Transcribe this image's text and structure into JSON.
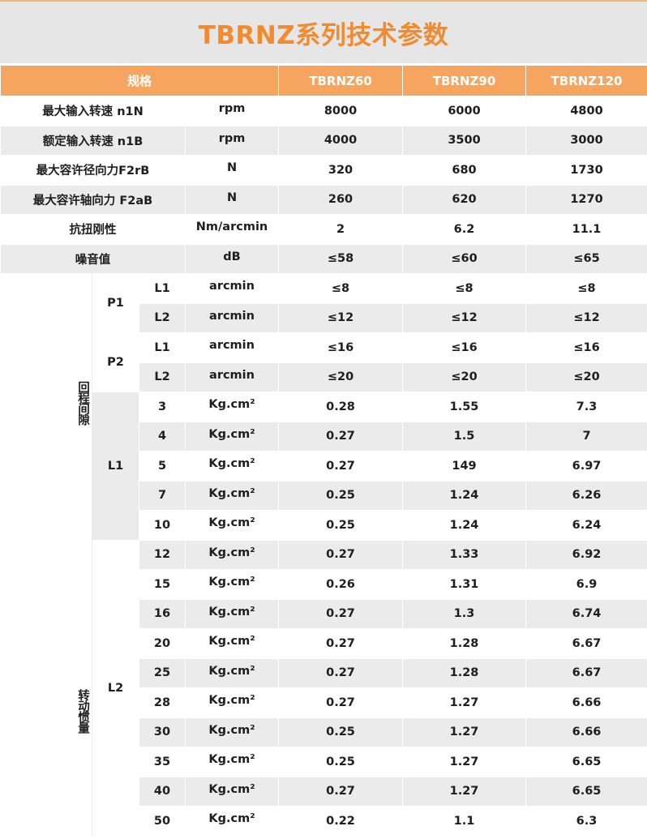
{
  "title": "TBRNZ系列技术参数",
  "header": {
    "spec_label": "规格",
    "models": [
      "TBRNZ60",
      "TBRNZ90",
      "TBRNZ120"
    ]
  },
  "colors": {
    "accent": "#f5a560",
    "title": "#f28a2e",
    "stripe": "#ebebeb",
    "band": "#e6e6e6"
  },
  "top_rows": [
    {
      "name": "最大输入转速 n1N",
      "unit": "rpm",
      "values": [
        "8000",
        "6000",
        "4800"
      ]
    },
    {
      "name": "额定输入转速 n1B",
      "unit": "rpm",
      "values": [
        "4000",
        "3500",
        "3000"
      ]
    },
    {
      "name": "最大容许径向力F2rB",
      "unit": "N",
      "values": [
        "320",
        "680",
        "1730"
      ]
    },
    {
      "name": "最大容许轴向力 F2aB",
      "unit": "N",
      "values": [
        "260",
        "620",
        "1270"
      ]
    },
    {
      "name": "抗扭刚性",
      "unit": "Nm/arcmin",
      "values": [
        "2",
        "6.2",
        "11.1"
      ]
    },
    {
      "name": "噪音值",
      "unit": "dB",
      "values": [
        "≤58",
        "≤60",
        "≤65"
      ]
    }
  ],
  "backlash": {
    "label": "回程间隙",
    "groups": [
      {
        "name": "P1",
        "rows": [
          {
            "sub": "L1",
            "unit": "arcmin",
            "values": [
              "≤8",
              "≤8",
              "≤8"
            ]
          },
          {
            "sub": "L2",
            "unit": "arcmin",
            "values": [
              "≤12",
              "≤12",
              "≤12"
            ]
          }
        ]
      },
      {
        "name": "P2",
        "rows": [
          {
            "sub": "L1",
            "unit": "arcmin",
            "values": [
              "≤16",
              "≤16",
              "≤16"
            ]
          },
          {
            "sub": "L2",
            "unit": "arcmin",
            "values": [
              "≤20",
              "≤20",
              "≤20"
            ]
          }
        ]
      }
    ]
  },
  "inertia": {
    "label": "转动惯量",
    "groups": [
      {
        "name": "L1",
        "rows": [
          {
            "sub": "3",
            "unit": "Kg.cm²",
            "values": [
              "0.28",
              "1.55",
              "7.3"
            ]
          },
          {
            "sub": "4",
            "unit": "Kg.cm²",
            "values": [
              "0.27",
              "1.5",
              "7"
            ]
          },
          {
            "sub": "5",
            "unit": "Kg.cm²",
            "values": [
              "0.27",
              "149",
              "6.97"
            ]
          },
          {
            "sub": "7",
            "unit": "Kg.cm²",
            "values": [
              "0.25",
              "1.24",
              "6.26"
            ]
          },
          {
            "sub": "10",
            "unit": "Kg.cm²",
            "values": [
              "0.25",
              "1.24",
              "6.24"
            ]
          }
        ]
      },
      {
        "name": "L2",
        "rows": [
          {
            "sub": "12",
            "unit": "Kg.cm²",
            "values": [
              "0.27",
              "1.33",
              "6.92"
            ]
          },
          {
            "sub": "15",
            "unit": "Kg.cm²",
            "values": [
              "0.26",
              "1.31",
              "6.9"
            ]
          },
          {
            "sub": "16",
            "unit": "Kg.cm²",
            "values": [
              "0.27",
              "1.3",
              "6.74"
            ]
          },
          {
            "sub": "20",
            "unit": "Kg.cm²",
            "values": [
              "0.27",
              "1.28",
              "6.67"
            ]
          },
          {
            "sub": "25",
            "unit": "Kg.cm²",
            "values": [
              "0.27",
              "1.28",
              "6.67"
            ]
          },
          {
            "sub": "28",
            "unit": "Kg.cm²",
            "values": [
              "0.27",
              "1.27",
              "6.66"
            ]
          },
          {
            "sub": "30",
            "unit": "Kg.cm²",
            "values": [
              "0.25",
              "1.27",
              "6.66"
            ]
          },
          {
            "sub": "35",
            "unit": "Kg.cm²",
            "values": [
              "0.25",
              "1.27",
              "6.65"
            ]
          },
          {
            "sub": "40",
            "unit": "Kg.cm²",
            "values": [
              "0.27",
              "1.27",
              "6.65"
            ]
          },
          {
            "sub": "50",
            "unit": "Kg.cm²",
            "values": [
              "0.22",
              "1.1",
              "6.3"
            ]
          }
        ]
      }
    ]
  }
}
